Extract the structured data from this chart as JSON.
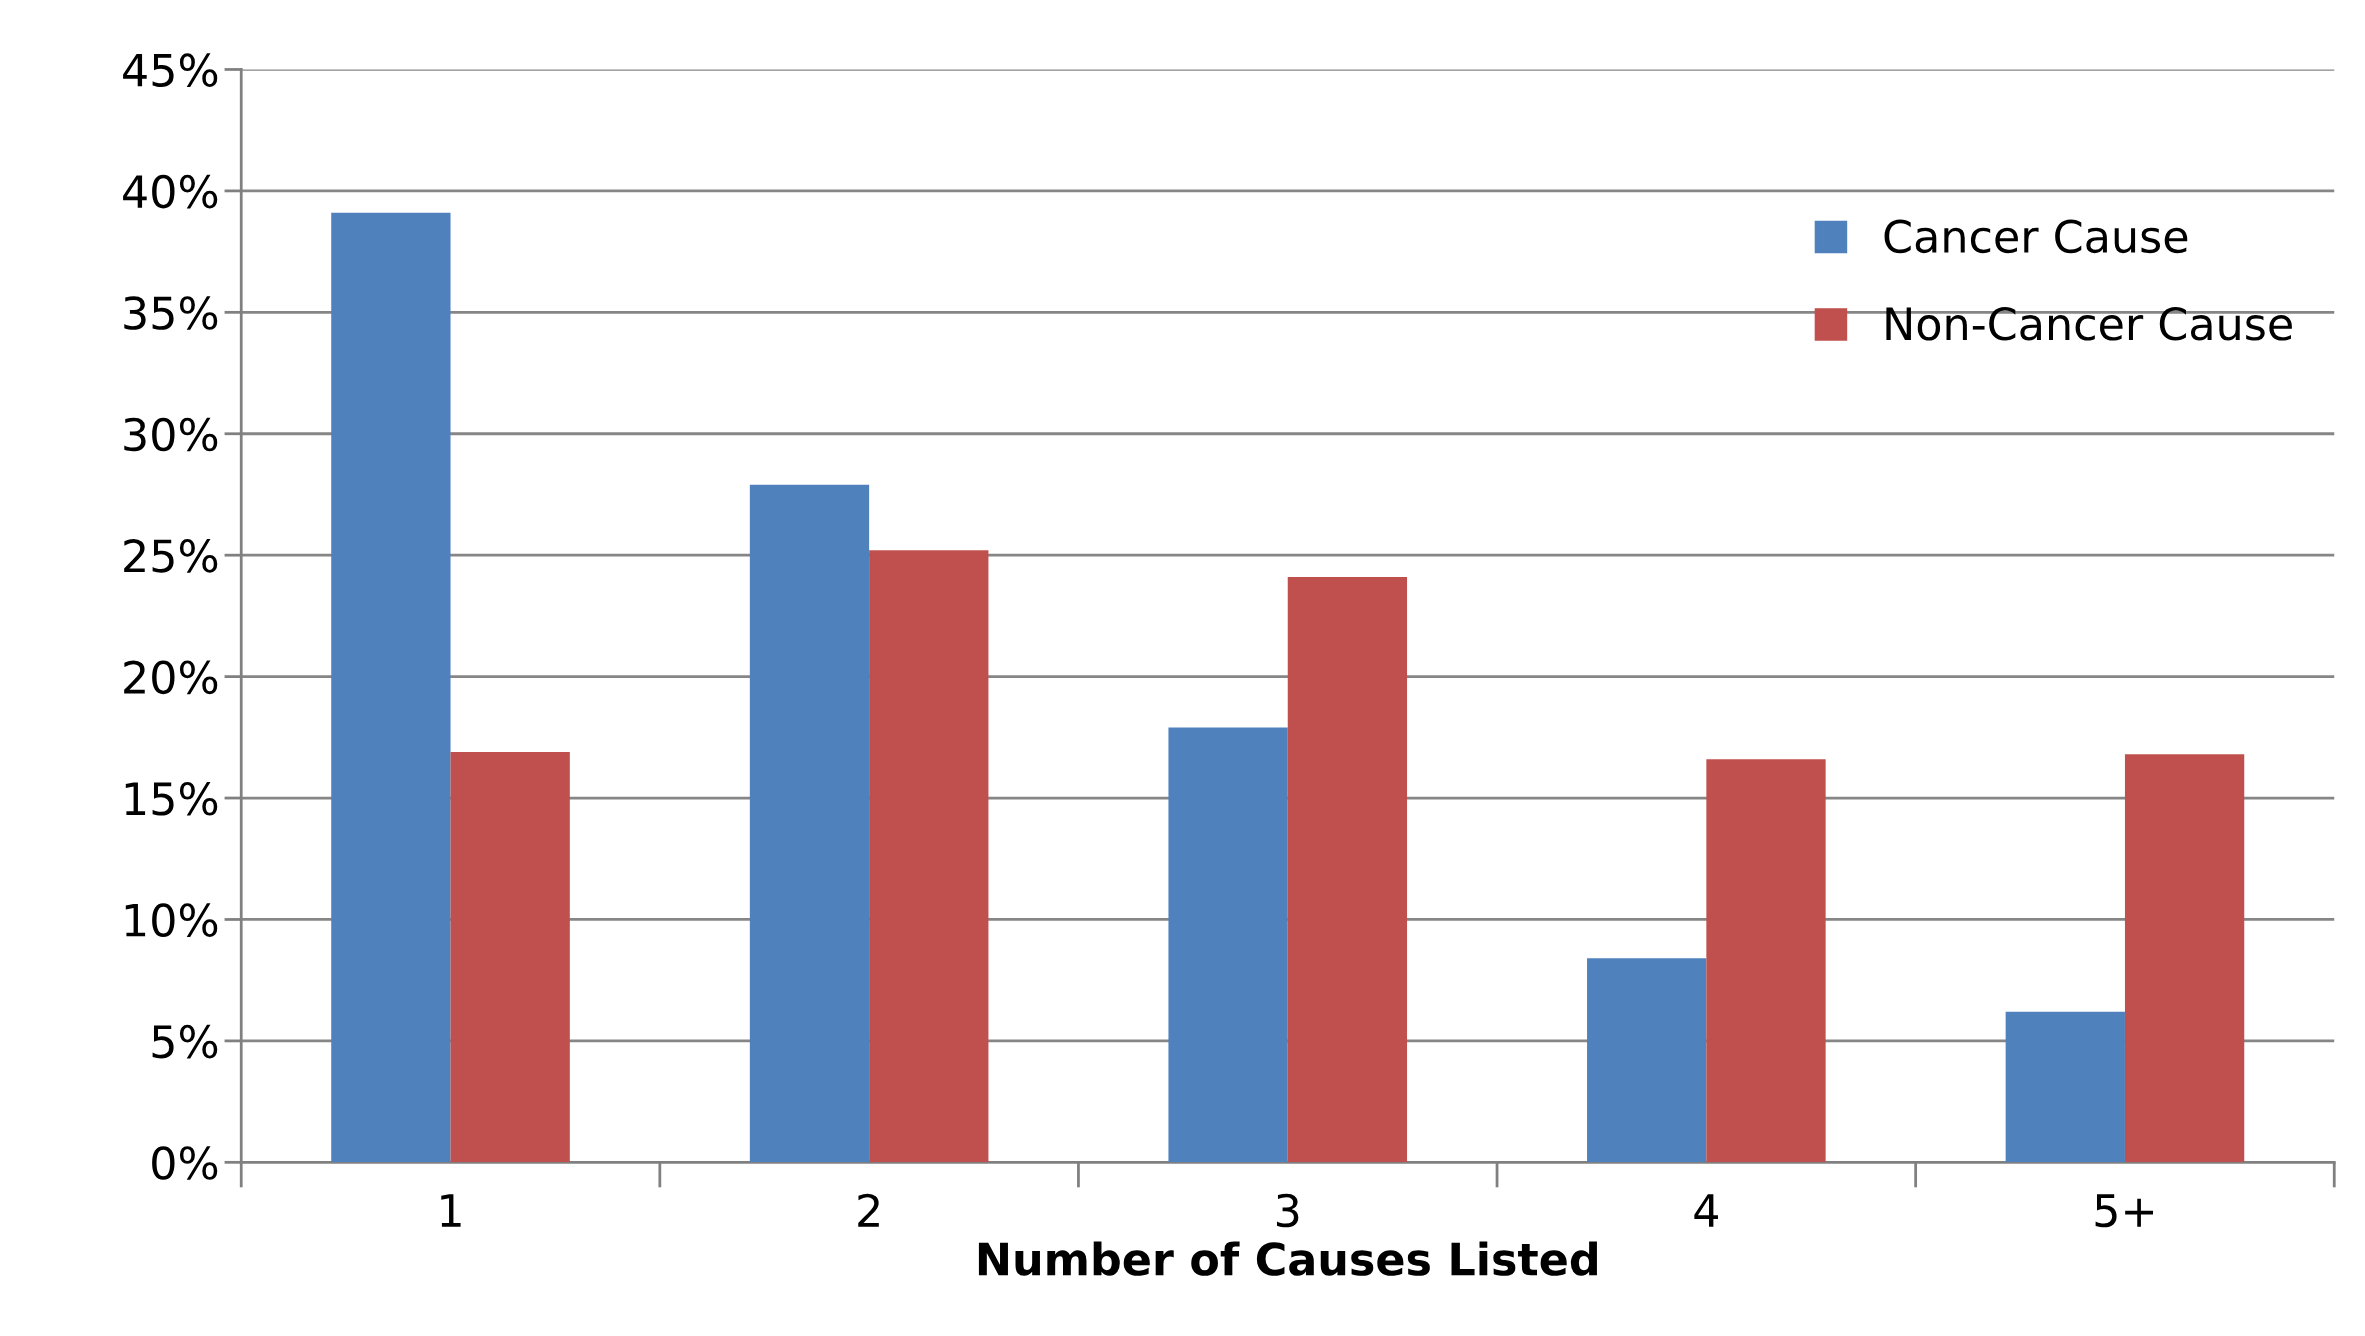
{
  "chart_data": {
    "type": "bar",
    "xlabel": "Number of Causes Listed",
    "categories": [
      "1",
      "2",
      "3",
      "4",
      "5+"
    ],
    "series": [
      {
        "name": "Cancer Cause",
        "color": "#4f81bd",
        "values": [
          39.1,
          27.9,
          17.9,
          8.4,
          6.2
        ]
      },
      {
        "name": "Non-Cancer Cause",
        "color": "#c0504d",
        "values": [
          16.9,
          25.2,
          24.1,
          16.6,
          16.8
        ]
      }
    ],
    "ylim": [
      0,
      45
    ],
    "yticks": [
      {
        "value": 0,
        "label": "0%"
      },
      {
        "value": 5,
        "label": "5%"
      },
      {
        "value": 10,
        "label": "10%"
      },
      {
        "value": 15,
        "label": "15%"
      },
      {
        "value": 20,
        "label": "20%"
      },
      {
        "value": 25,
        "label": "25%"
      },
      {
        "value": 30,
        "label": "30%"
      },
      {
        "value": 35,
        "label": "35%"
      },
      {
        "value": 40,
        "label": "40%"
      },
      {
        "value": 45,
        "label": "45%"
      }
    ],
    "grid": "y",
    "legend": "top right"
  }
}
